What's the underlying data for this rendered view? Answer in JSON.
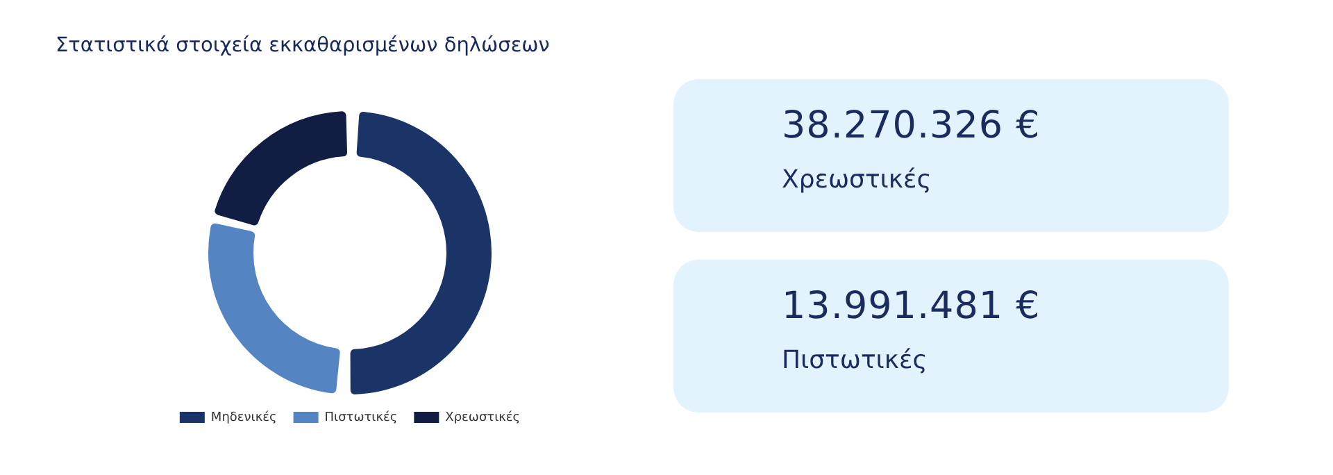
{
  "chart_data": [
    {
      "type": "donut",
      "title": "Στατιστικά στοιχεία εκκαθαρισμένων δηλώσεων",
      "categories": [
        "Μηδενικές",
        "Πιστωτικές",
        "Χρεωστικές"
      ],
      "values": [
        51,
        28,
        21
      ],
      "colors": [
        "#1b3468",
        "#5485c2",
        "#111d42"
      ],
      "legend": "bottom"
    },
    {
      "type": "other",
      "annotations": [
        "38.270.326 €",
        "Χρεωστικές",
        "13.991.481 €",
        "Πιστωτικές"
      ]
    }
  ]
}
